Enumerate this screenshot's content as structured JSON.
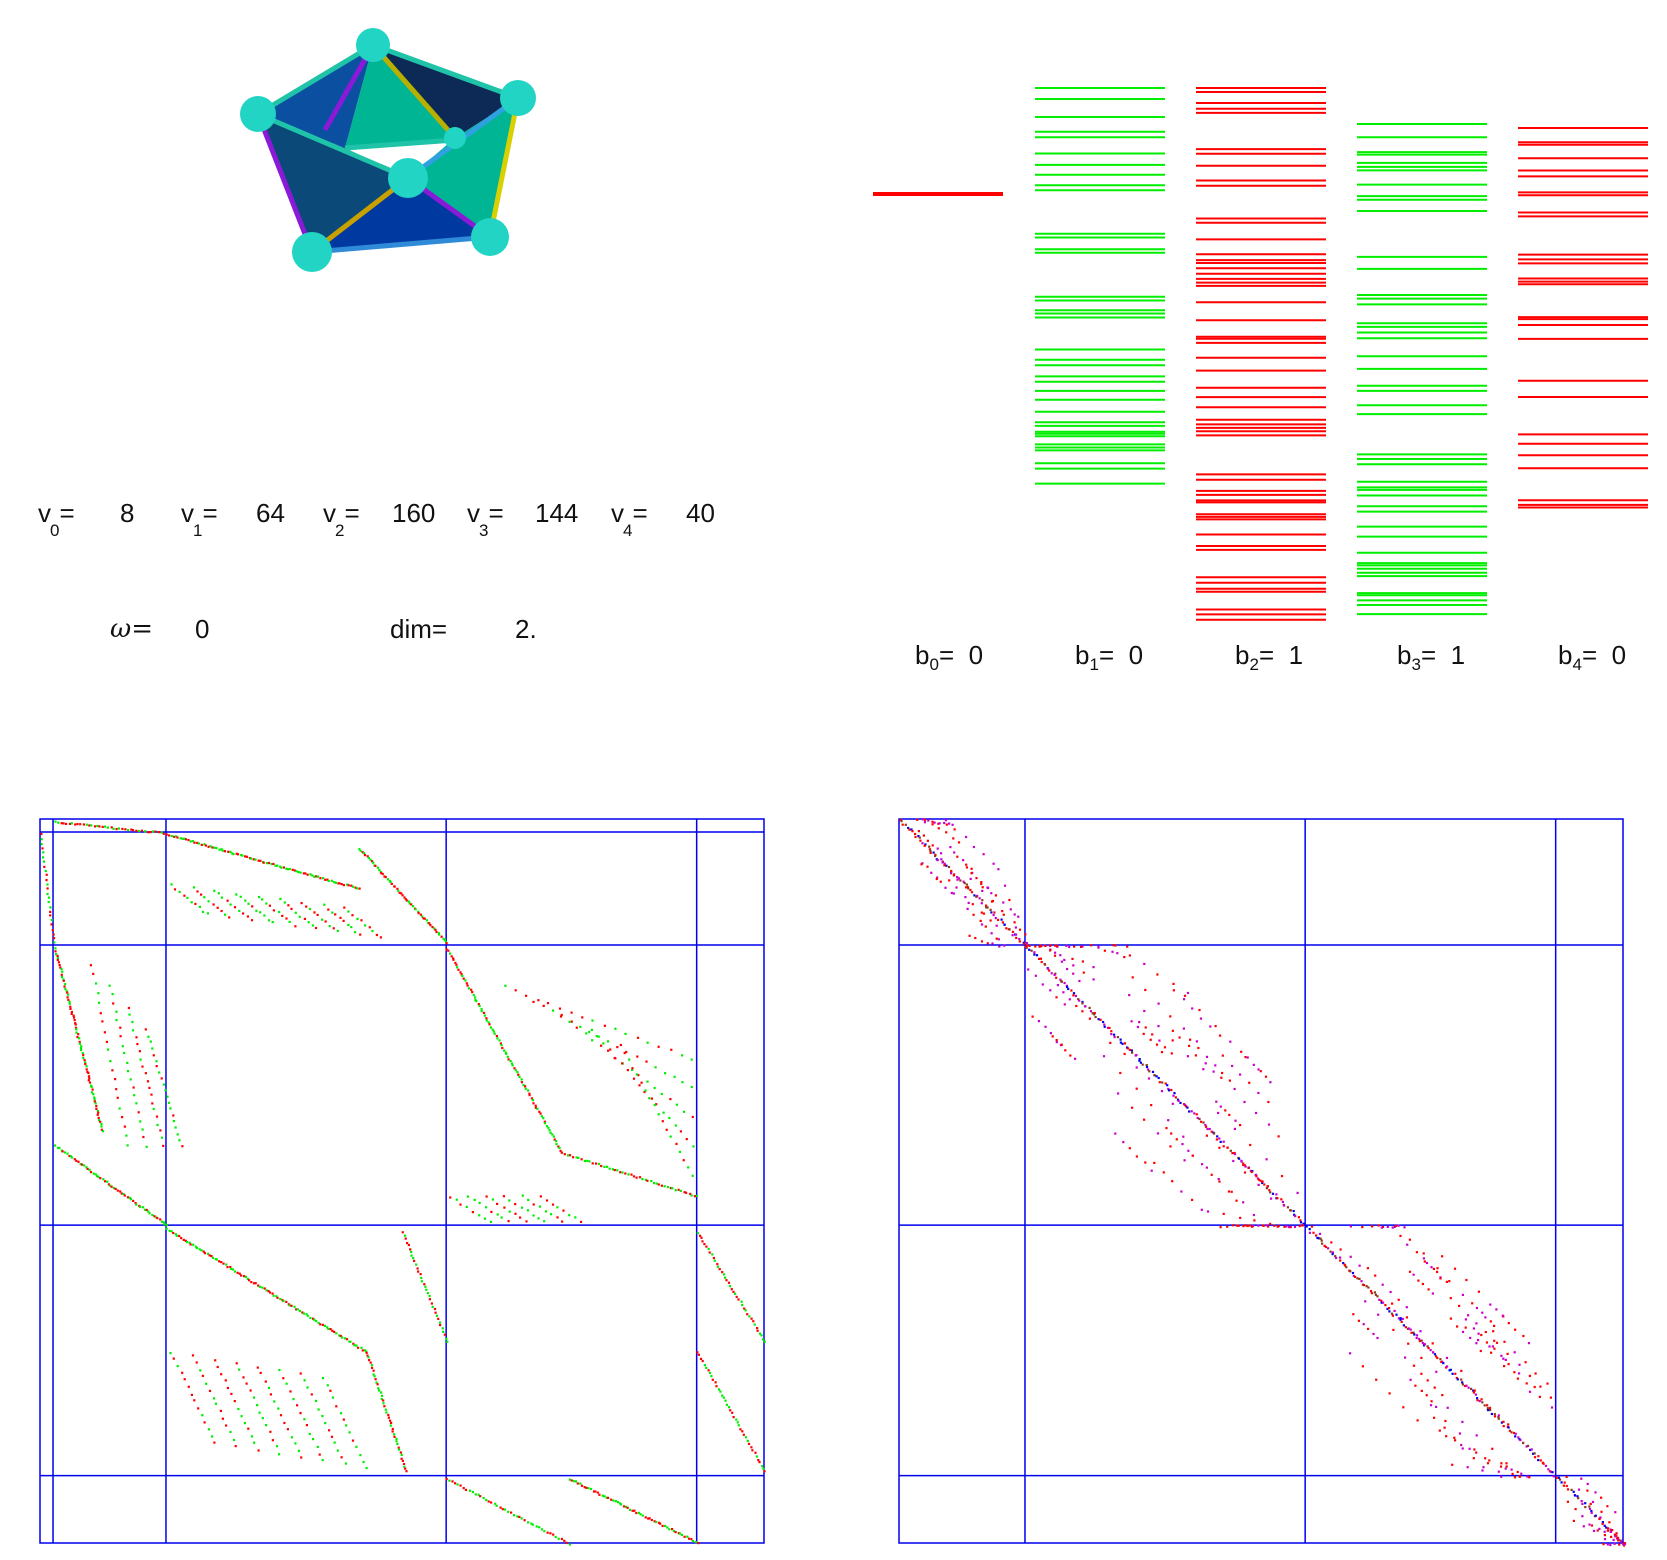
{
  "stats": {
    "v": [
      {
        "label": "v",
        "sub": "0",
        "value": "8"
      },
      {
        "label": "v",
        "sub": "1",
        "value": "64"
      },
      {
        "label": "v",
        "sub": "2",
        "value": "160"
      },
      {
        "label": "v",
        "sub": "3",
        "value": "144"
      },
      {
        "label": "v",
        "sub": "4",
        "value": "40"
      }
    ],
    "omega_label": "ω=",
    "omega_value": "0",
    "dim_label": "dim=",
    "dim_value": "2."
  },
  "betti": [
    {
      "label": "b",
      "sub": "0",
      "value": "0"
    },
    {
      "label": "b",
      "sub": "1",
      "value": "0"
    },
    {
      "label": "b",
      "sub": "2",
      "value": "1"
    },
    {
      "label": "b",
      "sub": "3",
      "value": "1"
    },
    {
      "label": "b",
      "sub": "4",
      "value": "0"
    }
  ],
  "colors": {
    "red": "#ff0000",
    "green": "#00ee00",
    "blue": "#0000ee",
    "magenta": "#cc00cc",
    "sphere": "#22d4c4",
    "face_dark": "#0c2a55",
    "face_teal": "#00b594",
    "face_blue": "#0039a0"
  },
  "spectrum_columns": [
    {
      "color": "red",
      "count": 8
    },
    {
      "color": "green",
      "count": 64
    },
    {
      "color": "red",
      "count": 160
    },
    {
      "color": "green",
      "count": 144
    },
    {
      "color": "red",
      "count": 40
    }
  ]
}
